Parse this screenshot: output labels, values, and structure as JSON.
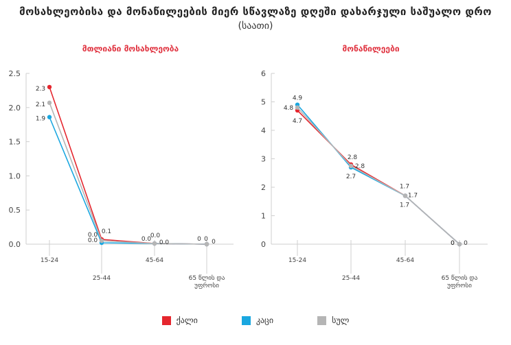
{
  "title": "მოსახლეობისა და მონაწილეების მიერ სწავლაზე დღეში დახარჯული საშუალო დრო",
  "subtitle": "(საათი)",
  "legend": [
    {
      "label": "ქალი",
      "color": "#e5262e"
    },
    {
      "label": "კაცი",
      "color": "#1aa7e0"
    },
    {
      "label": "სულ",
      "color": "#b5b5b5"
    }
  ],
  "chart_data": [
    {
      "type": "line",
      "title": "მთლიანი მოსახლეობა",
      "categories": [
        "15-24",
        "25-44",
        "45-64",
        "65 წლის და უფროსი"
      ],
      "ylim": [
        0,
        2.5
      ],
      "yticks": [
        "0.0",
        "0.5",
        "1.0",
        "1.5",
        "2.0",
        "2.5"
      ],
      "series": [
        {
          "name": "ქალი",
          "color": "#e5262e",
          "values": [
            2.3,
            0.07,
            0.01,
            0.0
          ],
          "labels": [
            "2.3",
            "0.1",
            "0.0",
            "0"
          ]
        },
        {
          "name": "კაცი",
          "color": "#1aa7e0",
          "values": [
            1.86,
            0.02,
            0.01,
            0.0
          ],
          "labels": [
            "1.9",
            "0.0",
            "0.0",
            "0"
          ]
        },
        {
          "name": "სულ",
          "color": "#b5b5b5",
          "values": [
            2.07,
            0.05,
            0.01,
            0.0
          ],
          "labels": [
            "2.1",
            "0.0",
            "0.0",
            "0"
          ]
        }
      ]
    },
    {
      "type": "line",
      "title": "მონაწილეები",
      "categories": [
        "15-24",
        "25-44",
        "45-64",
        "65 წლის და უფროსი"
      ],
      "ylim": [
        0,
        6
      ],
      "yticks": [
        "0",
        "1",
        "2",
        "3",
        "4",
        "5",
        "6"
      ],
      "series": [
        {
          "name": "ქალი",
          "color": "#e5262e",
          "values": [
            4.7,
            2.8,
            1.7,
            0
          ],
          "labels": [
            "4.7",
            "2.8",
            "1.7",
            "0"
          ]
        },
        {
          "name": "კაცი",
          "color": "#1aa7e0",
          "values": [
            4.9,
            2.7,
            1.7,
            0
          ],
          "labels": [
            "4.9",
            "2.7",
            "1.7",
            "0"
          ]
        },
        {
          "name": "სულ",
          "color": "#b5b5b5",
          "values": [
            4.8,
            2.75,
            1.7,
            0
          ],
          "labels": [
            "4.8",
            "2.8",
            "1.7",
            "0"
          ]
        }
      ]
    }
  ]
}
